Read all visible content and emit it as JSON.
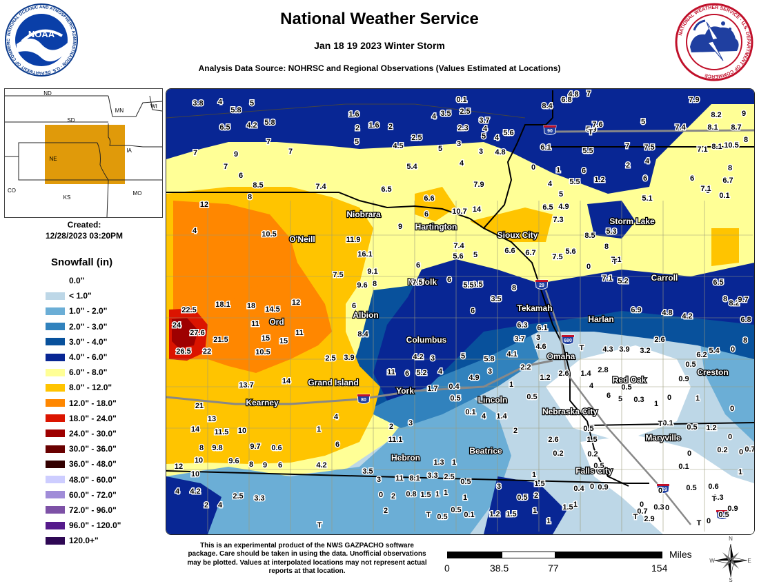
{
  "header": {
    "title": "National Weather Service",
    "subtitle": "Jan 18 19 2023 Winter Storm",
    "source": "Analysis Data Source: NOHRSC and Regional Observations (Values Estimated at Locations)"
  },
  "noaa_logo": {
    "text": "NOAA",
    "ring_text": "NATIONAL OCEANIC AND ATMOSPHERIC ADMINISTRATION · U.S. DEPARTMENT OF COMMERCE"
  },
  "nws_logo": {
    "ring_text": "NATIONAL WEATHER SERVICE · U.S. DEPARTMENT OF COMMERCE"
  },
  "inset": {
    "states": [
      "ND",
      "MN",
      "WI",
      "SD",
      "NE",
      "IA",
      "CO",
      "KS",
      "MO"
    ],
    "highlight_color": "#e09a0a"
  },
  "created": {
    "label": "Created:",
    "date": "12/28/2023 03:20PM"
  },
  "legend": {
    "title": "Snowfall (in)",
    "items": [
      {
        "label": "0.0\"",
        "color": "#ffffff"
      },
      {
        "label": "< 1.0\"",
        "color": "#bdd7e7"
      },
      {
        "label": "1.0\" - 2.0\"",
        "color": "#6baed6"
      },
      {
        "label": "2.0\" - 3.0\"",
        "color": "#3182bd"
      },
      {
        "label": "3.0\" - 4.0\"",
        "color": "#08519c"
      },
      {
        "label": "4.0\" - 6.0\"",
        "color": "#082694"
      },
      {
        "label": "6.0\" - 8.0\"",
        "color": "#ffff96"
      },
      {
        "label": "8.0\" - 12.0\"",
        "color": "#ffc400"
      },
      {
        "label": "12.0\" - 18.0\"",
        "color": "#ff8700"
      },
      {
        "label": "18.0\" - 24.0\"",
        "color": "#db1400"
      },
      {
        "label": "24.0\" - 30.0\"",
        "color": "#9e0000"
      },
      {
        "label": "30.0\" - 36.0\"",
        "color": "#690000"
      },
      {
        "label": "36.0\" - 48.0\"",
        "color": "#330000"
      },
      {
        "label": "48.0\" - 60.0\"",
        "color": "#cdcdff"
      },
      {
        "label": "60.0\" - 72.0\"",
        "color": "#a08cd8"
      },
      {
        "label": "72.0\" - 96.0\"",
        "color": "#7d51a6"
      },
      {
        "label": "96.0\" - 120.0\"",
        "color": "#551a8b"
      },
      {
        "label": "120.0+\"",
        "color": "#2e0854"
      }
    ]
  },
  "map": {
    "cities": [
      {
        "name": "Niobrara"
      },
      {
        "name": "Hartington"
      },
      {
        "name": "O'Neill"
      },
      {
        "name": "Sioux City"
      },
      {
        "name": "Storm Lake"
      },
      {
        "name": "Norfolk"
      },
      {
        "name": "Carroll"
      },
      {
        "name": "Tekamah"
      },
      {
        "name": "Albion"
      },
      {
        "name": "Harlan"
      },
      {
        "name": "Ord"
      },
      {
        "name": "Columbus"
      },
      {
        "name": "Omaha"
      },
      {
        "name": "Red Oak"
      },
      {
        "name": "Creston"
      },
      {
        "name": "Grand Island"
      },
      {
        "name": "York"
      },
      {
        "name": "Kearney"
      },
      {
        "name": "Lincoln"
      },
      {
        "name": "Nebraska City"
      },
      {
        "name": "Maryville"
      },
      {
        "name": "Hebron"
      },
      {
        "name": "Beatrice"
      },
      {
        "name": "Falls City"
      }
    ],
    "highways": [
      "90",
      "29",
      "680",
      "80",
      "229",
      "35"
    ],
    "values": [
      "3.8",
      "4",
      "5",
      "5.8",
      "6.5",
      "4.2",
      "7",
      "5.8",
      "7",
      "7",
      "7",
      "9",
      "6",
      "8.5",
      "7.4",
      "12",
      "8",
      "4",
      "10.5",
      "22.5",
      "18.1",
      "18",
      "14.5",
      "12",
      "24",
      "27.6",
      "11",
      "21.5",
      "26.5",
      "22",
      "15",
      "10.5",
      "15",
      "11",
      "13.7",
      "14",
      "21",
      "13",
      "14",
      "11.5",
      "10",
      "8",
      "9.8",
      "9.7",
      "0.6",
      "12",
      "10",
      "9.6",
      "8",
      "9",
      "6",
      "10",
      "4",
      "4.2",
      "2",
      "4",
      "2.5",
      "3.3",
      "0.1",
      "1.6",
      "2",
      "1.6",
      "2",
      "4",
      "3.5",
      "2.5",
      "3.7",
      "4",
      "5",
      "2.3",
      "4",
      "5.6",
      "5",
      "4.5",
      "2.5",
      "5",
      "3",
      "3",
      "4.8",
      "5.4",
      "4",
      "7.9",
      "6.5",
      "6.6",
      "6",
      "10.7",
      "14",
      "9",
      "11.9",
      "16.1",
      "9.1",
      "7.5",
      "9.6",
      "8",
      "6",
      "7.4",
      "5.6",
      "5",
      "6",
      "6.5",
      "6",
      "8",
      "7.5",
      "5.5",
      "6.6",
      "6.7",
      "7.5",
      "3.5",
      "6",
      "6.3",
      "6.1",
      "3.7",
      "3",
      "4.6",
      "4.2",
      "3",
      "5",
      "5.8",
      "4.1",
      "2.5",
      "3.9",
      "8.4",
      "11",
      "6",
      "5.2",
      "4",
      "4.9",
      "3",
      "2.2",
      "1",
      "1.2",
      "2.6",
      "1.4",
      "0.1",
      "0.5",
      "0.4",
      "1.7",
      "0.5",
      "2",
      "3",
      "4",
      "1.4",
      "1",
      "11.1",
      "6",
      "4.2",
      "4",
      "3.5",
      "11",
      "8.1",
      "3.3",
      "2.5",
      "1.3",
      "1",
      "2",
      "2.6",
      "0.2",
      "1",
      "0.5",
      "1.5",
      "0.2",
      "0.4",
      "0",
      "0.9",
      "1.5",
      "2",
      "0.5",
      "1",
      "1.5",
      "1",
      "3",
      "1.2",
      "1",
      "0.5",
      "0.5",
      "0.1",
      "0.8",
      "1.5",
      "2",
      "0",
      "2",
      "3",
      "1",
      "1",
      "0.5",
      "1.5",
      "1",
      "0.5",
      "0.5",
      "0.3",
      "0",
      "0.9",
      "0.5",
      "1",
      "1",
      "0.1",
      "0.5",
      "0",
      "1.2",
      "0.2",
      "0",
      "0.1",
      "0.5",
      "0.6",
      "0.3",
      "0.5",
      "0",
      "0.9",
      "1",
      "0.7",
      "0",
      "0.7",
      "0",
      "2.9",
      "0.3",
      "0",
      "0",
      "0",
      "0",
      "3.2",
      "2.6",
      "4.3",
      "3.9",
      "2.8",
      "4",
      "6",
      "5",
      "5.4",
      "6.2",
      "4.8",
      "4.2",
      "6.9",
      "5.2",
      "7.1",
      "0",
      "8",
      "8.2",
      "9.7",
      "6.8",
      "8",
      "6.5",
      "5.3",
      "8",
      "7.1",
      "4.9",
      "6.5",
      "5.6",
      "8.5",
      "7.3",
      "5.5",
      "6",
      "4",
      "5",
      "0",
      "1",
      "1.2",
      "2",
      "4",
      "6",
      "5.1",
      "7.5",
      "5.5",
      "6.1",
      "7",
      "5.9",
      "4.8",
      "7",
      "6.8",
      "8.4",
      "7.6",
      "5",
      "7.4",
      "7.9",
      "8.1",
      "8.2",
      "9",
      "8.7",
      "7.1",
      "8.1",
      "10.5",
      "8",
      "8",
      "6",
      "6.7",
      "5",
      "7.1",
      "0.1"
    ],
    "t_trace_label": "T"
  },
  "disclaimer": "This is an experimental product of the NWS GAZPACHO software package. Care should be taken in using the data. Unofficial observations may be plotted. Values at interpolated locations may not represent actual reports at that location.",
  "scale": {
    "unit": "Miles",
    "ticks": [
      "0",
      "38.5",
      "77",
      "154"
    ]
  },
  "compass": {
    "n": "N",
    "e": "E",
    "s": "S",
    "w": "W"
  }
}
